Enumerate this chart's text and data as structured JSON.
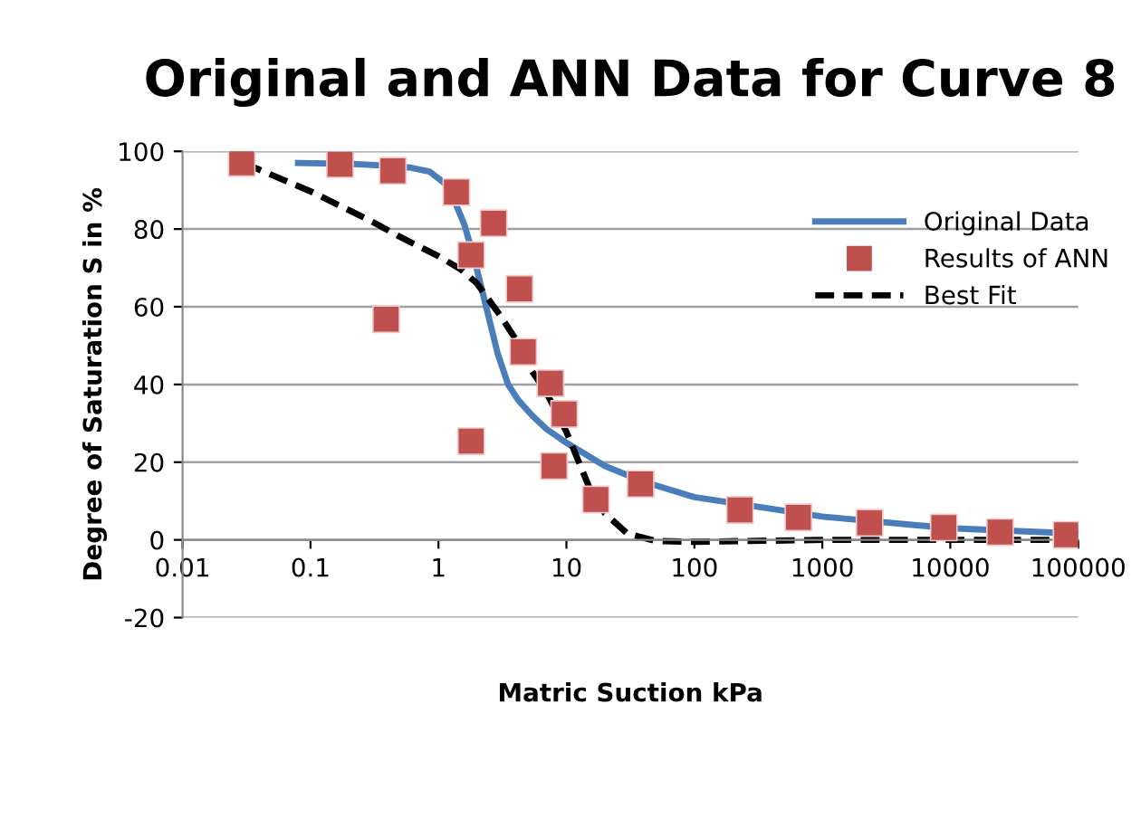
{
  "chart_data": {
    "type": "line",
    "title": "Original and ANN Data for Curve 8",
    "xlabel": "Matric Suction kPa",
    "ylabel": "Degree of Saturation S in %",
    "log": "x",
    "xlim": [
      0.01,
      100000
    ],
    "xticks": [
      {
        "value": 0.01,
        "label": "0.01"
      },
      {
        "value": 0.1,
        "label": "0.1"
      },
      1,
      10,
      100,
      1000,
      10000,
      100000
    ],
    "ylim": [
      -20,
      100
    ],
    "yticks": [
      -20,
      0,
      20,
      40,
      60,
      80,
      100
    ],
    "grid": "y",
    "legend": "top right",
    "series": [
      {
        "name": "Original Data",
        "color": "#4a7ebb",
        "line_style": "solid",
        "x": [
          0.08,
          0.2,
          0.4,
          0.61,
          0.85,
          1.2,
          1.6,
          1.96,
          2.4,
          2.9,
          3.5,
          4.2,
          5.4,
          7,
          10,
          20,
          40,
          100,
          1000,
          10000,
          100000
        ],
        "values": [
          97,
          96.8,
          96.3,
          95.8,
          94.8,
          91,
          81,
          70.7,
          59,
          48,
          40,
          36,
          32,
          28.5,
          25,
          19,
          15,
          11,
          6,
          3,
          1.6
        ]
      },
      {
        "name": "Results of ANN",
        "type": "scatter",
        "color": "#c0504d",
        "marker": "square",
        "x": [
          0.029,
          0.17,
          0.44,
          1.38,
          2.7,
          1.8,
          4.3,
          0.39,
          4.6,
          7.5,
          9.6,
          1.8,
          8,
          17,
          38,
          227,
          650,
          2340,
          8900,
          24500,
          81000
        ],
        "values": [
          97,
          96.7,
          95,
          89.5,
          81.5,
          73.3,
          64.6,
          56.8,
          48.4,
          40.3,
          32.4,
          25.4,
          19,
          10.4,
          14.4,
          7.7,
          5.8,
          4.4,
          3.2,
          2,
          1.3
        ]
      },
      {
        "name": "Best Fit",
        "color": "#000000",
        "line_style": "dashed",
        "x": [
          0.03,
          0.1,
          0.3,
          0.5,
          1,
          1.5,
          2,
          3,
          4,
          5,
          7,
          10,
          15,
          20,
          30,
          50,
          100,
          1000,
          100000
        ],
        "values": [
          97,
          89.7,
          82,
          78,
          73,
          69.6,
          66,
          58,
          51.7,
          45,
          37.8,
          27.8,
          13.7,
          6.8,
          1.6,
          -0.3,
          -0.5,
          0,
          0
        ]
      }
    ]
  }
}
